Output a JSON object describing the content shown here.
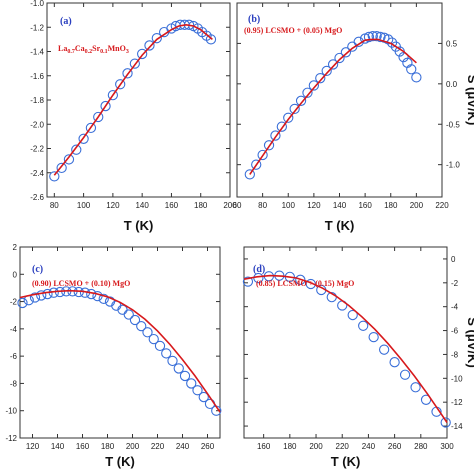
{
  "colors": {
    "fit_line": "#d7191c",
    "markers": "#3a6fd8",
    "panel_letter": "#2a3fbf",
    "annotation": "#d7191c",
    "frame": "#333333"
  },
  "chart_data": [
    {
      "type": "scatter",
      "panel": "(a)",
      "annotation": "La0.7Ca0.2Sr0.1MnO3",
      "xlabel": "T (K)",
      "ylabel": "",
      "xlim": [
        75,
        200
      ],
      "ylim": [
        -2.6,
        -1.0
      ],
      "xticks": [
        80,
        100,
        120,
        140,
        160,
        180,
        200
      ],
      "yticks": [
        -2.6,
        -2.4,
        -2.2,
        -2.0,
        -1.8,
        -1.6,
        -1.4,
        -1.2,
        -1.0
      ],
      "x_tick_labels": [
        "80",
        "100",
        "120",
        "140",
        "160",
        "180",
        "200"
      ],
      "y_tick_labels": [
        "-2.6",
        "-2.4",
        "-2.2",
        "-2.0",
        "-1.8",
        "-1.6",
        "-1.4",
        "-1.2",
        "-1.0"
      ],
      "grid": false,
      "series": [
        {
          "x": [
            80,
            85,
            90,
            95,
            100,
            105,
            110,
            115,
            120,
            125,
            130,
            135,
            140,
            145,
            150,
            155,
            160,
            163,
            166,
            169,
            172,
            175,
            178,
            181,
            184,
            187
          ],
          "y": [
            -2.43,
            -2.36,
            -2.29,
            -2.21,
            -2.12,
            -2.03,
            -1.94,
            -1.85,
            -1.76,
            -1.67,
            -1.58,
            -1.5,
            -1.42,
            -1.35,
            -1.29,
            -1.24,
            -1.21,
            -1.19,
            -1.18,
            -1.18,
            -1.18,
            -1.19,
            -1.21,
            -1.24,
            -1.27,
            -1.3
          ]
        },
        {
          "x": [
            80,
            90,
            100,
            110,
            120,
            130,
            140,
            150,
            160,
            165,
            170,
            175,
            180,
            185,
            188
          ],
          "y": [
            -2.42,
            -2.27,
            -2.11,
            -1.94,
            -1.76,
            -1.59,
            -1.43,
            -1.3,
            -1.22,
            -1.19,
            -1.18,
            -1.19,
            -1.22,
            -1.27,
            -1.3
          ]
        }
      ]
    },
    {
      "type": "scatter",
      "panel": "(b)",
      "annotation": "(0.95) LCSMO + (0.05) MgO",
      "xlabel": "T (K)",
      "ylabel": "S (μV/K)",
      "xlim": [
        60,
        220
      ],
      "ylim": [
        -1.4,
        1.0
      ],
      "xticks": [
        60,
        80,
        100,
        120,
        140,
        160,
        180,
        200,
        220
      ],
      "yticks": [
        -1.0,
        -0.5,
        0.0,
        0.5
      ],
      "x_tick_labels": [
        "60",
        "80",
        "100",
        "120",
        "140",
        "160",
        "180",
        "200",
        "220"
      ],
      "y_tick_labels": [
        "-1.0",
        "-0.5",
        "0.0",
        "0.5"
      ],
      "grid": false,
      "series": [
        {
          "x": [
            70,
            75,
            80,
            85,
            90,
            95,
            100,
            105,
            110,
            115,
            120,
            125,
            130,
            135,
            140,
            145,
            150,
            155,
            160,
            163,
            166,
            169,
            172,
            175,
            178,
            181,
            184,
            187,
            190,
            193,
            196,
            200
          ],
          "y": [
            -1.12,
            -1.0,
            -0.88,
            -0.76,
            -0.64,
            -0.53,
            -0.42,
            -0.31,
            -0.21,
            -0.11,
            -0.02,
            0.07,
            0.16,
            0.24,
            0.32,
            0.39,
            0.46,
            0.52,
            0.56,
            0.58,
            0.59,
            0.59,
            0.58,
            0.57,
            0.55,
            0.51,
            0.46,
            0.4,
            0.33,
            0.26,
            0.18,
            0.08
          ]
        },
        {
          "x": [
            70,
            80,
            90,
            100,
            110,
            120,
            130,
            140,
            150,
            160,
            165,
            170,
            180,
            190,
            200
          ],
          "y": [
            -1.12,
            -0.89,
            -0.66,
            -0.44,
            -0.24,
            -0.05,
            0.13,
            0.3,
            0.44,
            0.54,
            0.55,
            0.55,
            0.5,
            0.4,
            0.26
          ]
        }
      ]
    },
    {
      "type": "scatter",
      "panel": "(c)",
      "annotation": "(0.90) LCSMO + (0.10) MgO",
      "xlabel": "T (K)",
      "ylabel": "",
      "xlim": [
        110,
        270
      ],
      "ylim": [
        -12,
        2
      ],
      "xticks": [
        120,
        140,
        160,
        180,
        200,
        220,
        240,
        260
      ],
      "yticks": [
        -12,
        -10,
        -8,
        -6,
        -4,
        -2,
        0,
        2
      ],
      "x_tick_labels": [
        "120",
        "140",
        "160",
        "180",
        "200",
        "220",
        "240",
        "260"
      ],
      "y_tick_labels": [
        "-12",
        "-10",
        "-8",
        "-6",
        "-4",
        "-2",
        "0",
        "2"
      ],
      "grid": false,
      "series": [
        {
          "x": [
            112,
            117,
            122,
            127,
            132,
            137,
            142,
            147,
            152,
            157,
            162,
            167,
            172,
            177,
            182,
            187,
            192,
            197,
            202,
            207,
            212,
            217,
            222,
            227,
            232,
            237,
            242,
            247,
            252,
            257,
            262,
            267
          ],
          "y": [
            -2.1,
            -1.9,
            -1.7,
            -1.55,
            -1.45,
            -1.35,
            -1.3,
            -1.25,
            -1.25,
            -1.3,
            -1.35,
            -1.45,
            -1.6,
            -1.8,
            -2.0,
            -2.3,
            -2.6,
            -2.95,
            -3.35,
            -3.8,
            -4.25,
            -4.75,
            -5.25,
            -5.8,
            -6.35,
            -6.9,
            -7.45,
            -8.0,
            -8.5,
            -9.0,
            -9.5,
            -10.0
          ]
        },
        {
          "x": [
            110,
            120,
            130,
            140,
            150,
            160,
            170,
            180,
            190,
            200,
            210,
            220,
            230,
            240,
            250,
            260,
            270
          ],
          "y": [
            -1.7,
            -1.5,
            -1.35,
            -1.25,
            -1.2,
            -1.25,
            -1.4,
            -1.65,
            -2.05,
            -2.6,
            -3.3,
            -4.15,
            -5.15,
            -6.25,
            -7.45,
            -8.75,
            -10.1
          ]
        }
      ]
    },
    {
      "type": "scatter",
      "panel": "(d)",
      "annotation": "(0.85) LCSMO + (0.15) MgO",
      "xlabel": "T (K)",
      "ylabel": "S (μV/K)",
      "xlim": [
        145,
        300
      ],
      "ylim": [
        -15,
        1
      ],
      "xticks": [
        160,
        180,
        200,
        220,
        240,
        260,
        280,
        300
      ],
      "yticks": [
        -14,
        -12,
        -10,
        -8,
        -6,
        -4,
        -2,
        0
      ],
      "x_tick_labels": [
        "160",
        "180",
        "200",
        "220",
        "240",
        "260",
        "280",
        "300"
      ],
      "y_tick_labels": [
        "-14",
        "-12",
        "-10",
        "-8",
        "-6",
        "-4",
        "-2",
        "0"
      ],
      "grid": false,
      "series": [
        {
          "x": [
            148,
            156,
            164,
            172,
            180,
            188,
            196,
            204,
            212,
            220,
            228,
            236,
            244,
            252,
            260,
            268,
            276,
            284,
            292,
            299
          ],
          "y": [
            -1.9,
            -1.6,
            -1.45,
            -1.4,
            -1.5,
            -1.75,
            -2.1,
            -2.6,
            -3.2,
            -3.9,
            -4.7,
            -5.6,
            -6.55,
            -7.6,
            -8.65,
            -9.7,
            -10.75,
            -11.8,
            -12.8,
            -13.7
          ]
        },
        {
          "x": [
            145,
            155,
            165,
            175,
            185,
            195,
            205,
            215,
            225,
            235,
            245,
            255,
            265,
            275,
            285,
            295,
            300
          ],
          "y": [
            -1.7,
            -1.5,
            -1.4,
            -1.45,
            -1.6,
            -1.95,
            -2.45,
            -3.1,
            -3.9,
            -4.85,
            -5.9,
            -7.1,
            -8.4,
            -9.8,
            -11.3,
            -12.9,
            -13.7
          ]
        }
      ]
    }
  ]
}
